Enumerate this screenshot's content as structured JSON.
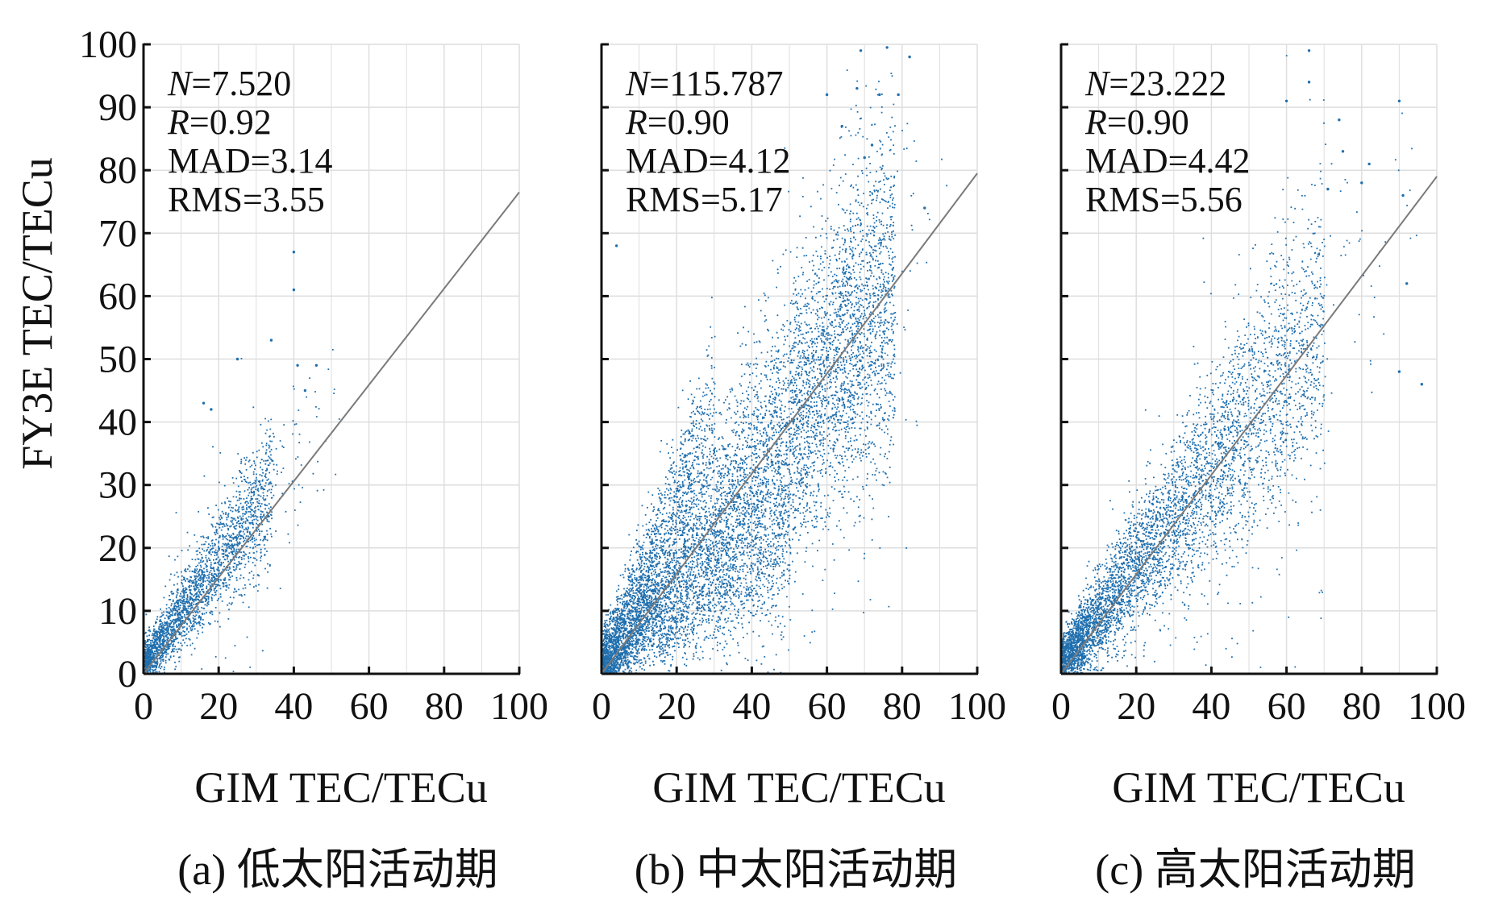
{
  "figure": {
    "y_axis_label": "FY3E TEC/TECu",
    "colors": {
      "points": "#1f6fae",
      "fit_line": "#7a7a7a",
      "grid": "#dedede",
      "axes": "#111111"
    }
  },
  "chart_data": [
    {
      "type": "scatter",
      "xlabel": "GIM TEC/TECu",
      "ylabel": "FY3E TEC/TECu",
      "xlim": [
        0,
        100
      ],
      "ylim": [
        0,
        100
      ],
      "xticks": [
        "0",
        "20",
        "40",
        "60",
        "80",
        "100"
      ],
      "yticks": [
        "0",
        "10",
        "20",
        "30",
        "40",
        "50",
        "60",
        "70",
        "80",
        "90",
        "100"
      ],
      "grid": true,
      "caption": "(a) 低太阳活动期",
      "stats": {
        "N": "7.520",
        "R": "0.92",
        "MAD": "3.14",
        "RMS": "3.55"
      },
      "fit_line": {
        "x": [
          0,
          100
        ],
        "y": [
          0,
          76.5
        ]
      },
      "density": {
        "mode": "low",
        "sample_points": 2600,
        "core_x_range": [
          0,
          55
        ],
        "typical_spread": 3.5
      },
      "outliers": [
        [
          40,
          67
        ],
        [
          40,
          61
        ],
        [
          34,
          53
        ],
        [
          25,
          50
        ],
        [
          41,
          49
        ],
        [
          46,
          49
        ],
        [
          43,
          45
        ],
        [
          16,
          43
        ],
        [
          18,
          42
        ]
      ]
    },
    {
      "type": "scatter",
      "xlabel": "GIM TEC/TECu",
      "ylabel": "FY3E TEC/TECu",
      "xlim": [
        0,
        100
      ],
      "ylim": [
        0,
        100
      ],
      "xticks": [
        "0",
        "20",
        "40",
        "60",
        "80",
        "100"
      ],
      "yticks": [
        "0",
        "10",
        "20",
        "30",
        "40",
        "50",
        "60",
        "70",
        "80",
        "90",
        "100"
      ],
      "grid": true,
      "caption": "(b) 中太阳活动期",
      "stats": {
        "N": "115.787",
        "R": "0.90",
        "MAD": "4.12",
        "RMS": "5.17"
      },
      "fit_line": {
        "x": [
          0,
          100
        ],
        "y": [
          0,
          79.5
        ]
      },
      "density": {
        "mode": "mid",
        "sample_points": 9000,
        "core_x_range": [
          0,
          92
        ],
        "typical_spread": 6.5
      },
      "outliers": [
        [
          69,
          99
        ],
        [
          76,
          99.5
        ],
        [
          82,
          98
        ],
        [
          68,
          93
        ],
        [
          74,
          92
        ],
        [
          60,
          92
        ],
        [
          79,
          92
        ],
        [
          64,
          87
        ],
        [
          70,
          82
        ],
        [
          72,
          84
        ],
        [
          4,
          68
        ],
        [
          86,
          74
        ]
      ]
    },
    {
      "type": "scatter",
      "xlabel": "GIM TEC/TECu",
      "ylabel": "FY3E TEC/TECu",
      "xlim": [
        0,
        100
      ],
      "ylim": [
        0,
        100
      ],
      "xticks": [
        "0",
        "20",
        "40",
        "60",
        "80",
        "100"
      ],
      "yticks": [
        "0",
        "10",
        "20",
        "30",
        "40",
        "50",
        "60",
        "70",
        "80",
        "90",
        "100"
      ],
      "grid": true,
      "caption": "(c) 高太阳活动期",
      "stats": {
        "N": "23.222",
        "R": "0.90",
        "MAD": "4.42",
        "RMS": "5.56"
      },
      "fit_line": {
        "x": [
          0,
          100
        ],
        "y": [
          0,
          79
        ]
      },
      "density": {
        "mode": "high",
        "sample_points": 5200,
        "core_x_range": [
          0,
          97
        ],
        "typical_spread": 5.5
      },
      "outliers": [
        [
          66,
          99
        ],
        [
          90,
          91
        ],
        [
          60,
          91
        ],
        [
          66,
          94
        ],
        [
          74,
          88
        ],
        [
          75,
          83
        ],
        [
          82,
          81
        ],
        [
          80,
          78
        ],
        [
          91,
          76
        ],
        [
          71,
          77
        ],
        [
          92,
          62
        ],
        [
          90,
          48
        ],
        [
          96,
          46
        ]
      ]
    }
  ]
}
